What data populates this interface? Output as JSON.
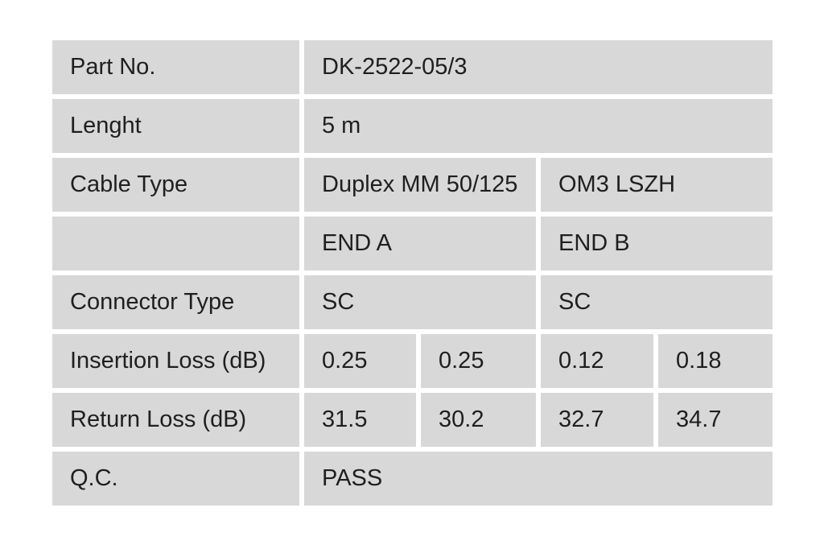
{
  "colors": {
    "cell_bg": "#d8d8d8",
    "text": "#1f1f1f",
    "gap": "#ffffff"
  },
  "table": {
    "description": "Fiber optic patch cable specification and QC test table",
    "rows": [
      {
        "label": "Part No.",
        "cells": [
          {
            "text": "DK-2522-05/3",
            "span": 4
          }
        ]
      },
      {
        "label": "Lenght",
        "cells": [
          {
            "text": "5 m",
            "span": 4
          }
        ]
      },
      {
        "label": "Cable Type",
        "cells": [
          {
            "text": "Duplex MM 50/125",
            "span": 2
          },
          {
            "text": "OM3 LSZH",
            "span": 2
          }
        ]
      },
      {
        "label": "",
        "cells": [
          {
            "text": "END A",
            "span": 2
          },
          {
            "text": "END B",
            "span": 2
          }
        ]
      },
      {
        "label": "Connector Type",
        "cells": [
          {
            "text": "SC",
            "span": 2
          },
          {
            "text": "SC",
            "span": 2
          }
        ]
      },
      {
        "label": "Insertion Loss (dB)",
        "cells": [
          {
            "text": "0.25",
            "span": 1
          },
          {
            "text": "0.25",
            "span": 1
          },
          {
            "text": "0.12",
            "span": 1
          },
          {
            "text": "0.18",
            "span": 1
          }
        ]
      },
      {
        "label": "Return Loss (dB)",
        "cells": [
          {
            "text": "31.5",
            "span": 1
          },
          {
            "text": "30.2",
            "span": 1
          },
          {
            "text": "32.7",
            "span": 1
          },
          {
            "text": "34.7",
            "span": 1
          }
        ]
      },
      {
        "label": "Q.C.",
        "cells": [
          {
            "text": "PASS",
            "span": 4
          }
        ]
      }
    ]
  }
}
